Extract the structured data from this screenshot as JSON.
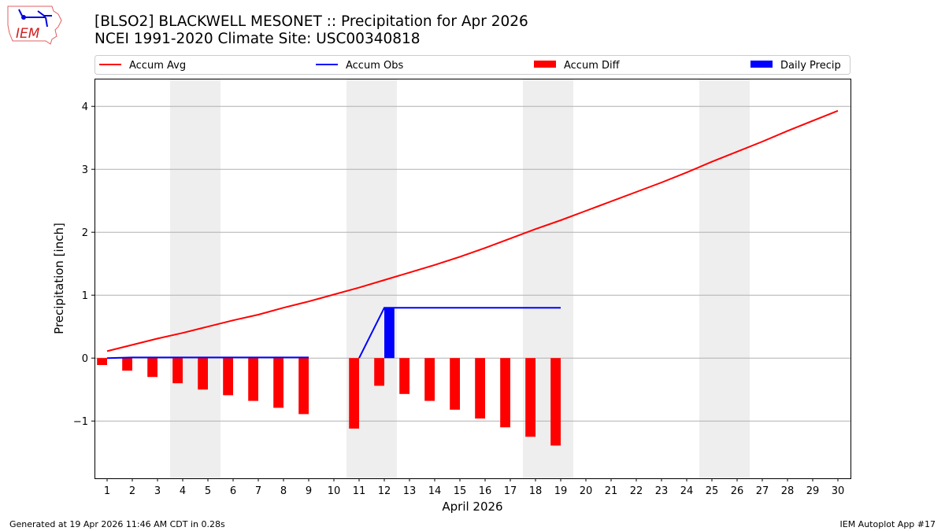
{
  "header": {
    "title_line1": "[BLSO2] BLACKWELL MESONET :: Precipitation for Apr 2026",
    "title_line2": "NCEI 1991-2020 Climate Site: USC00340818",
    "logo_text": "IEM"
  },
  "footer": {
    "generated": "Generated at 19 Apr 2026 11:46 AM CDT in 0.28s",
    "app": "IEM Autoplot App #17"
  },
  "chart_data": {
    "type": "bar",
    "xlabel": "April 2026",
    "ylabel": "Precipitation [inch]",
    "xlim": [
      0.5,
      30.5
    ],
    "ylim": [
      -1.91,
      4.44
    ],
    "yticks": [
      -1,
      0,
      1,
      2,
      3,
      4
    ],
    "ytick_labels": [
      "−1",
      "0",
      "1",
      "2",
      "3",
      "4"
    ],
    "xticks": [
      1,
      2,
      3,
      4,
      5,
      6,
      7,
      8,
      9,
      10,
      11,
      12,
      13,
      14,
      15,
      16,
      17,
      18,
      19,
      20,
      21,
      22,
      23,
      24,
      25,
      26,
      27,
      28,
      29,
      30
    ],
    "grid": "y",
    "legend_placement": "top",
    "weekend_shading": [
      [
        3.5,
        5.5
      ],
      [
        10.5,
        12.5
      ],
      [
        17.5,
        19.5
      ],
      [
        24.5,
        26.5
      ]
    ],
    "colors": {
      "accum_avg": "#ff0000",
      "accum_obs": "#0000ff",
      "accum_diff": "#ff0000",
      "daily_precip": "#0000ff",
      "weekend": "#eeeeee",
      "grid": "#b0b0b0"
    },
    "series": [
      {
        "name": "Accum Avg",
        "type": "line",
        "x": [
          1,
          2,
          3,
          4,
          5,
          6,
          7,
          8,
          9,
          10,
          11,
          12,
          13,
          14,
          15,
          16,
          17,
          18,
          19,
          20,
          21,
          22,
          23,
          24,
          25,
          26,
          27,
          28,
          29,
          30
        ],
        "values": [
          0.11,
          0.21,
          0.31,
          0.4,
          0.5,
          0.6,
          0.69,
          0.8,
          0.9,
          1.01,
          1.12,
          1.24,
          1.36,
          1.48,
          1.61,
          1.75,
          1.9,
          2.05,
          2.19,
          2.34,
          2.49,
          2.64,
          2.79,
          2.95,
          3.12,
          3.28,
          3.44,
          3.61,
          3.77,
          3.93
        ]
      },
      {
        "name": "Accum Obs",
        "type": "line",
        "segments": [
          {
            "x": [
              1,
              2,
              3,
              4,
              5,
              6,
              7,
              8,
              9
            ],
            "values": [
              0.0,
              0.01,
              0.01,
              0.01,
              0.01,
              0.01,
              0.01,
              0.01,
              0.01
            ]
          },
          {
            "x": [
              11,
              12,
              13,
              14,
              15,
              16,
              17,
              18,
              19
            ],
            "values": [
              0.0,
              0.8,
              0.8,
              0.8,
              0.8,
              0.8,
              0.8,
              0.8,
              0.8
            ]
          }
        ]
      },
      {
        "name": "Accum Diff",
        "type": "bar",
        "x": [
          1,
          2,
          3,
          4,
          5,
          6,
          7,
          8,
          9,
          11,
          12,
          13,
          14,
          15,
          16,
          17,
          18,
          19
        ],
        "values": [
          -0.11,
          -0.2,
          -0.3,
          -0.4,
          -0.5,
          -0.59,
          -0.68,
          -0.79,
          -0.89,
          -1.12,
          -0.44,
          -0.57,
          -0.68,
          -0.82,
          -0.96,
          -1.1,
          -1.25,
          -1.39
        ]
      },
      {
        "name": "Daily Precip",
        "type": "bar",
        "x": [
          12
        ],
        "values": [
          0.8
        ]
      }
    ]
  }
}
